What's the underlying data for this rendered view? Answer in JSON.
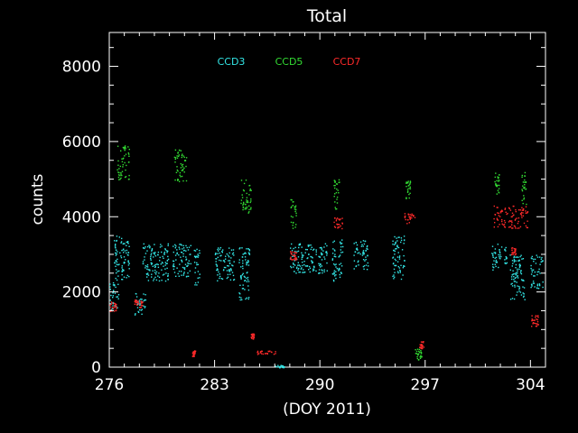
{
  "chart_data": {
    "type": "scatter",
    "title": "Total",
    "xlabel": "(DOY 2011)",
    "ylabel": "counts",
    "xlim": [
      276,
      305
    ],
    "ylim": [
      0,
      8900
    ],
    "x_ticks": [
      276,
      283,
      290,
      297,
      304
    ],
    "y_ticks": [
      0,
      2000,
      4000,
      6000,
      8000
    ],
    "grid": false,
    "legend_placement": "top-center",
    "series": [
      {
        "name": "CCD3",
        "color": "#33e6e6",
        "clusters": [
          {
            "x": [
              276.0,
              276.6
            ],
            "y": [
              1500,
              2300
            ]
          },
          {
            "x": [
              276.3,
              277.3
            ],
            "y": [
              2300,
              3500
            ]
          },
          {
            "x": [
              277.6,
              278.4
            ],
            "y": [
              1400,
              2000
            ]
          },
          {
            "x": [
              278.2,
              279.9
            ],
            "y": [
              2300,
              3300
            ]
          },
          {
            "x": [
              280.2,
              281.4
            ],
            "y": [
              2400,
              3300
            ]
          },
          {
            "x": [
              281.6,
              282.0
            ],
            "y": [
              2200,
              3200
            ]
          },
          {
            "x": [
              283.0,
              284.3
            ],
            "y": [
              2300,
              3200
            ]
          },
          {
            "x": [
              284.6,
              285.3
            ],
            "y": [
              1800,
              3200
            ]
          },
          {
            "x": [
              288.0,
              290.5
            ],
            "y": [
              2500,
              3300
            ]
          },
          {
            "x": [
              290.8,
              291.5
            ],
            "y": [
              2300,
              3400
            ]
          },
          {
            "x": [
              292.2,
              293.2
            ],
            "y": [
              2600,
              3400
            ]
          },
          {
            "x": [
              294.8,
              295.6
            ],
            "y": [
              2300,
              3500
            ]
          },
          {
            "x": [
              301.4,
              302.4
            ],
            "y": [
              2600,
              3300
            ]
          },
          {
            "x": [
              302.6,
              303.6
            ],
            "y": [
              1800,
              3000
            ]
          },
          {
            "x": [
              304.0,
              304.8
            ],
            "y": [
              2100,
              3000
            ]
          },
          {
            "x": [
              287.0,
              287.6
            ],
            "y": [
              0,
              60
            ]
          }
        ]
      },
      {
        "name": "CCD5",
        "color": "#33dd33",
        "clusters": [
          {
            "x": [
              276.5,
              277.3
            ],
            "y": [
              5000,
              5900
            ]
          },
          {
            "x": [
              280.3,
              281.1
            ],
            "y": [
              4900,
              5800
            ]
          },
          {
            "x": [
              284.7,
              285.4
            ],
            "y": [
              4100,
              5000
            ]
          },
          {
            "x": [
              288.0,
              288.4
            ],
            "y": [
              3700,
              4500
            ]
          },
          {
            "x": [
              290.9,
              291.3
            ],
            "y": [
              4200,
              5000
            ]
          },
          {
            "x": [
              295.7,
              296.0
            ],
            "y": [
              4500,
              5000
            ]
          },
          {
            "x": [
              296.3,
              296.8
            ],
            "y": [
              200,
              500
            ]
          },
          {
            "x": [
              301.6,
              301.9
            ],
            "y": [
              4500,
              5300
            ]
          },
          {
            "x": [
              303.4,
              303.7
            ],
            "y": [
              4300,
              5200
            ]
          }
        ]
      },
      {
        "name": "CCD7",
        "color": "#ff2a2a",
        "clusters": [
          {
            "x": [
              276.0,
              276.5
            ],
            "y": [
              1500,
              1750
            ]
          },
          {
            "x": [
              277.6,
              278.2
            ],
            "y": [
              1600,
              1800
            ]
          },
          {
            "x": [
              281.5,
              281.7
            ],
            "y": [
              300,
              450
            ]
          },
          {
            "x": [
              285.4,
              285.6
            ],
            "y": [
              750,
              900
            ]
          },
          {
            "x": [
              285.8,
              287.1
            ],
            "y": [
              350,
              450
            ]
          },
          {
            "x": [
              288.0,
              288.4
            ],
            "y": [
              2850,
              3100
            ]
          },
          {
            "x": [
              290.9,
              291.5
            ],
            "y": [
              3700,
              4000
            ]
          },
          {
            "x": [
              295.6,
              296.4
            ],
            "y": [
              3800,
              4100
            ]
          },
          {
            "x": [
              296.6,
              296.9
            ],
            "y": [
              500,
              700
            ]
          },
          {
            "x": [
              301.5,
              303.8
            ],
            "y": [
              3700,
              4300
            ]
          },
          {
            "x": [
              302.7,
              303.0
            ],
            "y": [
              3000,
              3200
            ]
          },
          {
            "x": [
              304.0,
              304.5
            ],
            "y": [
              1100,
              1400
            ]
          }
        ]
      }
    ]
  }
}
